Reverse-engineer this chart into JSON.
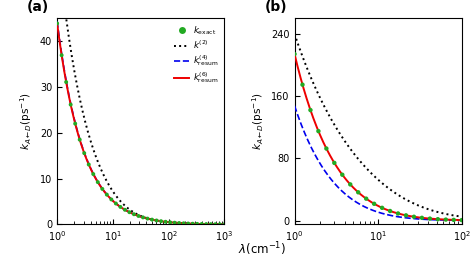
{
  "panel_a": {
    "xlim": [
      1,
      1000
    ],
    "ylim": [
      0,
      45
    ],
    "yticks": [
      0,
      10,
      20,
      30,
      40
    ]
  },
  "panel_b": {
    "xlim": [
      1,
      100
    ],
    "ylim": [
      -5,
      260
    ],
    "yticks": [
      0,
      80,
      160,
      240
    ]
  },
  "colors": {
    "exact": "#22aa22",
    "k2": "#000000",
    "k4resum": "#0000ee",
    "k6resum": "#ee0000"
  },
  "figsize": [
    4.76,
    2.61
  ],
  "dpi": 100
}
